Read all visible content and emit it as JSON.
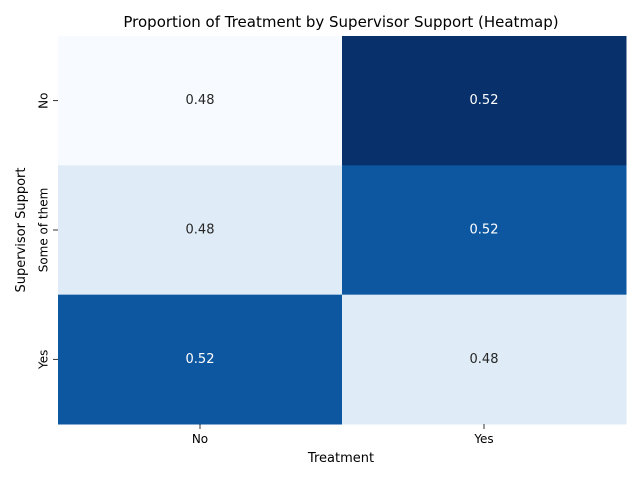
{
  "chart_data": {
    "type": "heatmap",
    "title": "Proportion of Treatment by Supervisor Support (Heatmap)",
    "xlabel": "Treatment",
    "ylabel": "Supervisor Support",
    "x_categories": [
      "No",
      "Yes"
    ],
    "y_categories": [
      "No",
      "Some of them",
      "Yes"
    ],
    "values": [
      [
        0.48,
        0.52
      ],
      [
        0.48,
        0.52
      ],
      [
        0.52,
        0.48
      ]
    ],
    "value_format": "0.00",
    "colormap": "Blues",
    "colorbar": false,
    "colors": {
      "0.48_row0": "#f7fbff",
      "0.48_other": "#d6e6f4",
      "0.52_mid": "#0d56a5",
      "0.52_top": "#08306b"
    }
  }
}
